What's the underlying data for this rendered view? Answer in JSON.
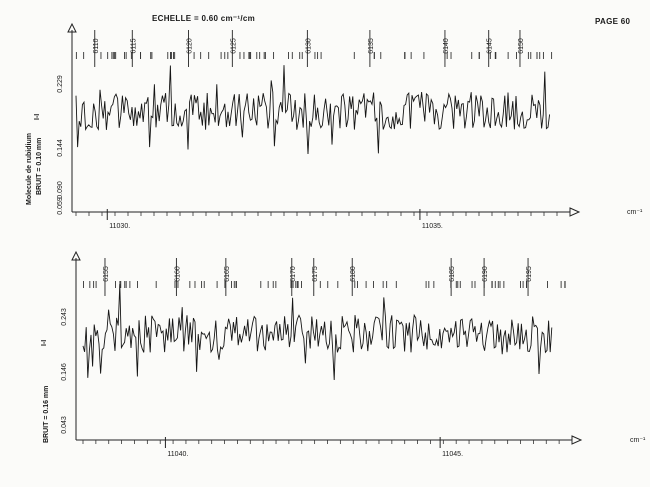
{
  "header": {
    "scale_label": "ECHELLE = 0.60 cm⁻¹/cm",
    "page_label": "PAGE 60"
  },
  "chart_data": [
    {
      "type": "line",
      "molecule_label": "Molecule de rubidium",
      "noise_label": "BRUIT = 0.10 mm",
      "intensity_marker": "I-I",
      "ytick_labels": [
        "0.229",
        "0.144",
        "0.090",
        "0.059"
      ],
      "xunit": "cm⁻¹",
      "xticks": [
        {
          "value": 11030,
          "label": "11030."
        },
        {
          "value": 11035,
          "label": "11035."
        }
      ],
      "xlim": [
        11029.5,
        11037.4
      ],
      "line_numbers": [
        {
          "label": "6110",
          "x": 11029.8
        },
        {
          "label": "6115",
          "x": 11030.4
        },
        {
          "label": "6120",
          "x": 11031.3
        },
        {
          "label": "6125",
          "x": 11032.0
        },
        {
          "label": "6130",
          "x": 11033.2
        },
        {
          "label": "6135",
          "x": 11034.2
        },
        {
          "label": "6140",
          "x": 11035.4
        },
        {
          "label": "6145",
          "x": 11036.1
        },
        {
          "label": "6150",
          "x": 11036.6
        }
      ]
    },
    {
      "type": "line",
      "noise_label": "BRUIT = 0.16 mm",
      "intensity_marker": "I-I",
      "ytick_labels": [
        "0.243",
        "0.146",
        "0.043"
      ],
      "xunit": "cm⁻¹",
      "xticks": [
        {
          "value": 11040,
          "label": "11040."
        },
        {
          "value": 11045,
          "label": "11045."
        }
      ],
      "xlim": [
        11038.5,
        11047.4
      ],
      "line_numbers": [
        {
          "label": "6155",
          "x": 11038.9
        },
        {
          "label": "6160",
          "x": 11040.2
        },
        {
          "label": "6165",
          "x": 11041.1
        },
        {
          "label": "6170",
          "x": 11042.3
        },
        {
          "label": "6175",
          "x": 11042.7
        },
        {
          "label": "6180",
          "x": 11043.4
        },
        {
          "label": "6185",
          "x": 11045.2
        },
        {
          "label": "6190",
          "x": 11045.8
        },
        {
          "label": "6195",
          "x": 11046.6
        }
      ]
    }
  ]
}
